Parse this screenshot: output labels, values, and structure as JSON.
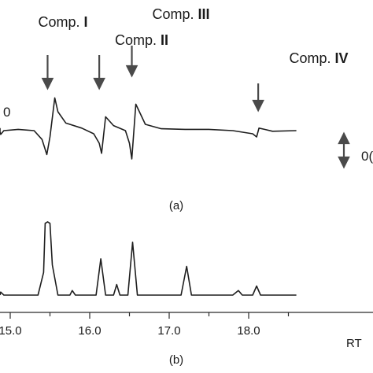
{
  "chart_data": [
    {
      "type": "line",
      "panel_label": "(a)",
      "edge_label_left": "0",
      "edge_label_right": "0(",
      "x": [
        14.4,
        14.7,
        14.85,
        14.88,
        14.92,
        15.1,
        15.3,
        15.4,
        15.46,
        15.5,
        15.56,
        15.6,
        15.7,
        15.9,
        16.05,
        16.12,
        16.15,
        16.2,
        16.3,
        16.45,
        16.5,
        16.53,
        16.58,
        16.7,
        16.9,
        17.2,
        17.5,
        17.8,
        18.05,
        18.1,
        18.13,
        18.2,
        18.3,
        18.6
      ],
      "y": [
        0.04,
        0.03,
        -0.02,
        -0.06,
        0.0,
        0.02,
        0.0,
        -0.14,
        -0.38,
        -0.1,
        0.52,
        0.3,
        0.12,
        0.04,
        -0.05,
        -0.2,
        -0.36,
        0.22,
        0.08,
        0.0,
        -0.2,
        -0.45,
        0.42,
        0.1,
        0.03,
        0.02,
        0.02,
        0.0,
        -0.05,
        -0.1,
        0.04,
        0.02,
        -0.01,
        0.0
      ],
      "annotations": [
        {
          "label_prefix": "Comp. ",
          "label_numeral": "I",
          "x": 15.47
        },
        {
          "label_prefix": "Comp. ",
          "label_numeral": "II",
          "x": 16.12
        },
        {
          "label_prefix": "Comp. ",
          "label_numeral": "III",
          "x": 16.53
        },
        {
          "label_prefix": "Comp. ",
          "label_numeral": "IV",
          "x": 18.12
        }
      ]
    },
    {
      "type": "line",
      "panel_label": "(b)",
      "xlabel": "RT",
      "xlim": [
        14.4,
        18.6
      ],
      "ylim": [
        0,
        1
      ],
      "xticks": [
        "15.0",
        "16.0",
        "17.0",
        "18.0"
      ],
      "x": [
        14.4,
        14.85,
        14.88,
        14.92,
        15.35,
        15.42,
        15.44,
        15.47,
        15.5,
        15.53,
        15.6,
        15.75,
        15.78,
        15.82,
        16.08,
        16.14,
        16.2,
        16.3,
        16.34,
        16.38,
        16.48,
        16.54,
        16.6,
        17.15,
        17.22,
        17.28,
        17.8,
        17.87,
        17.92,
        18.05,
        18.1,
        18.15,
        18.6
      ],
      "y": [
        0.0,
        0.0,
        0.04,
        0.0,
        0.0,
        0.3,
        0.95,
        0.97,
        0.95,
        0.4,
        0.0,
        0.0,
        0.06,
        0.0,
        0.0,
        0.48,
        0.0,
        0.0,
        0.14,
        0.0,
        0.0,
        0.7,
        0.0,
        0.0,
        0.38,
        0.0,
        0.0,
        0.06,
        0.0,
        0.0,
        0.12,
        0.0,
        0.0
      ]
    }
  ],
  "double_arrow": {
    "color": "#4a4a4a"
  }
}
